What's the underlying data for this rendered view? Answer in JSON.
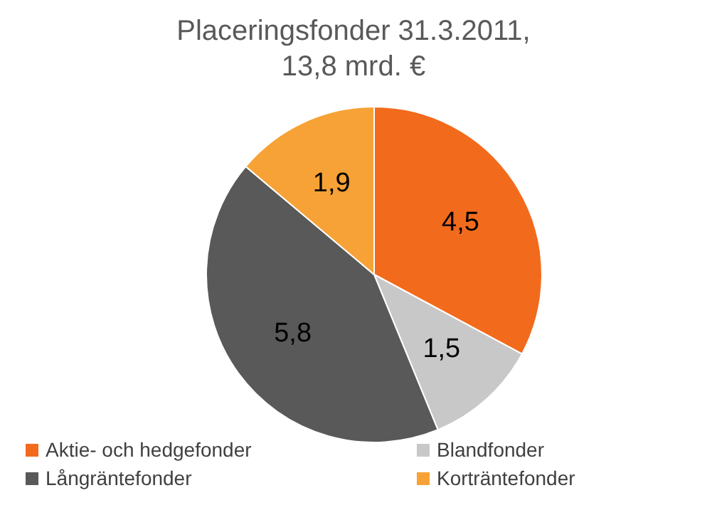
{
  "chart_data": {
    "type": "pie",
    "title": "Placeringsfonder 31.3.2011,\n13,8 mrd. €",
    "categories": [
      "Aktie- och hedgefonder",
      "Blandfonder",
      "Långräntefonder",
      "Korträntefonder"
    ],
    "values": [
      4.5,
      1.5,
      5.8,
      1.9
    ],
    "colors": [
      "#f26b1d",
      "#c8c8c8",
      "#595959",
      "#f7a236"
    ],
    "value_labels": [
      "4,5",
      "1,5",
      "5,8",
      "1,9"
    ],
    "legend": "bottom"
  }
}
